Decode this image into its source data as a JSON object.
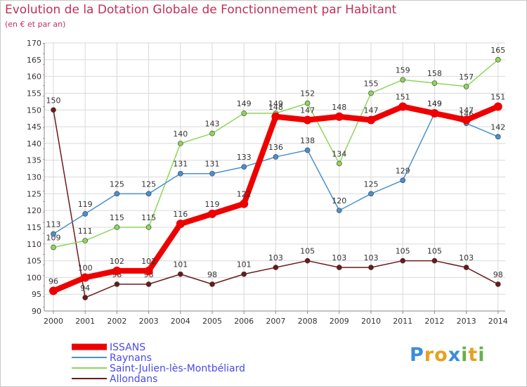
{
  "title": "Evolution de la Dotation Globale de Fonctionnement par Habitant",
  "subtitle": "(en € et par an)",
  "logo": {
    "letters": [
      "P",
      "r",
      "o",
      "x",
      "i",
      "t",
      "i"
    ],
    "colors": [
      "#3a8ed8",
      "#e8a020",
      "#e8a020",
      "#3a8ed8",
      "#6ab04c",
      "#e8a020",
      "#6ab04c"
    ]
  },
  "chart_data": {
    "type": "line",
    "title": "Evolution de la Dotation Globale de Fonctionnement par Habitant",
    "subtitle": "(en € et par an)",
    "xlabel": "",
    "ylabel": "",
    "x": [
      2000,
      2001,
      2002,
      2003,
      2004,
      2005,
      2006,
      2007,
      2008,
      2009,
      2010,
      2011,
      2012,
      2013,
      2014
    ],
    "ylim": [
      90,
      170
    ],
    "yticks": [
      90,
      95,
      100,
      105,
      110,
      115,
      120,
      125,
      130,
      135,
      140,
      145,
      150,
      155,
      160,
      165,
      170
    ],
    "grid": true,
    "legend_position": "bottom-left",
    "series": [
      {
        "name": "Allondans",
        "color": "#6b1a1a",
        "values": [
          150,
          94,
          98,
          98,
          101,
          98,
          101,
          103,
          105,
          103,
          103,
          105,
          105,
          103,
          98
        ],
        "labels": [
          null,
          94,
          98,
          98,
          101,
          98,
          101,
          103,
          105,
          103,
          103,
          105,
          105,
          103,
          98
        ]
      },
      {
        "name": "Saint-Julien-lès-Montbéliard",
        "color": "#8ed65a",
        "values": [
          109,
          111,
          115,
          115,
          140,
          143,
          149,
          149,
          152,
          134,
          155,
          159,
          158,
          157,
          165
        ],
        "labels": [
          109,
          111,
          115,
          115,
          140,
          143,
          149,
          149,
          152,
          134,
          155,
          159,
          158,
          157,
          165
        ]
      },
      {
        "name": "Raynans",
        "color": "#4a90d0",
        "values": [
          113,
          119,
          125,
          125,
          131,
          131,
          133,
          136,
          138,
          120,
          125,
          129,
          149,
          146,
          142
        ],
        "labels": [
          113,
          119,
          125,
          125,
          131,
          131,
          133,
          136,
          138,
          120,
          125,
          129,
          149,
          146,
          142
        ]
      },
      {
        "name": "ISSANS",
        "color": "#ee0000",
        "values": [
          96,
          100,
          102,
          102,
          116,
          119,
          122,
          148,
          147,
          148,
          147,
          151,
          149,
          147,
          151
        ],
        "labels": [
          96,
          100,
          102,
          102,
          116,
          119,
          122,
          148,
          147,
          148,
          147,
          151,
          149,
          147,
          151
        ]
      }
    ],
    "first_point_label": {
      "series": "Allondans",
      "value": 150
    },
    "legend": [
      "ISSANS",
      "Raynans",
      "Saint-Julien-lès-Montbéliard",
      "Allondans"
    ]
  }
}
